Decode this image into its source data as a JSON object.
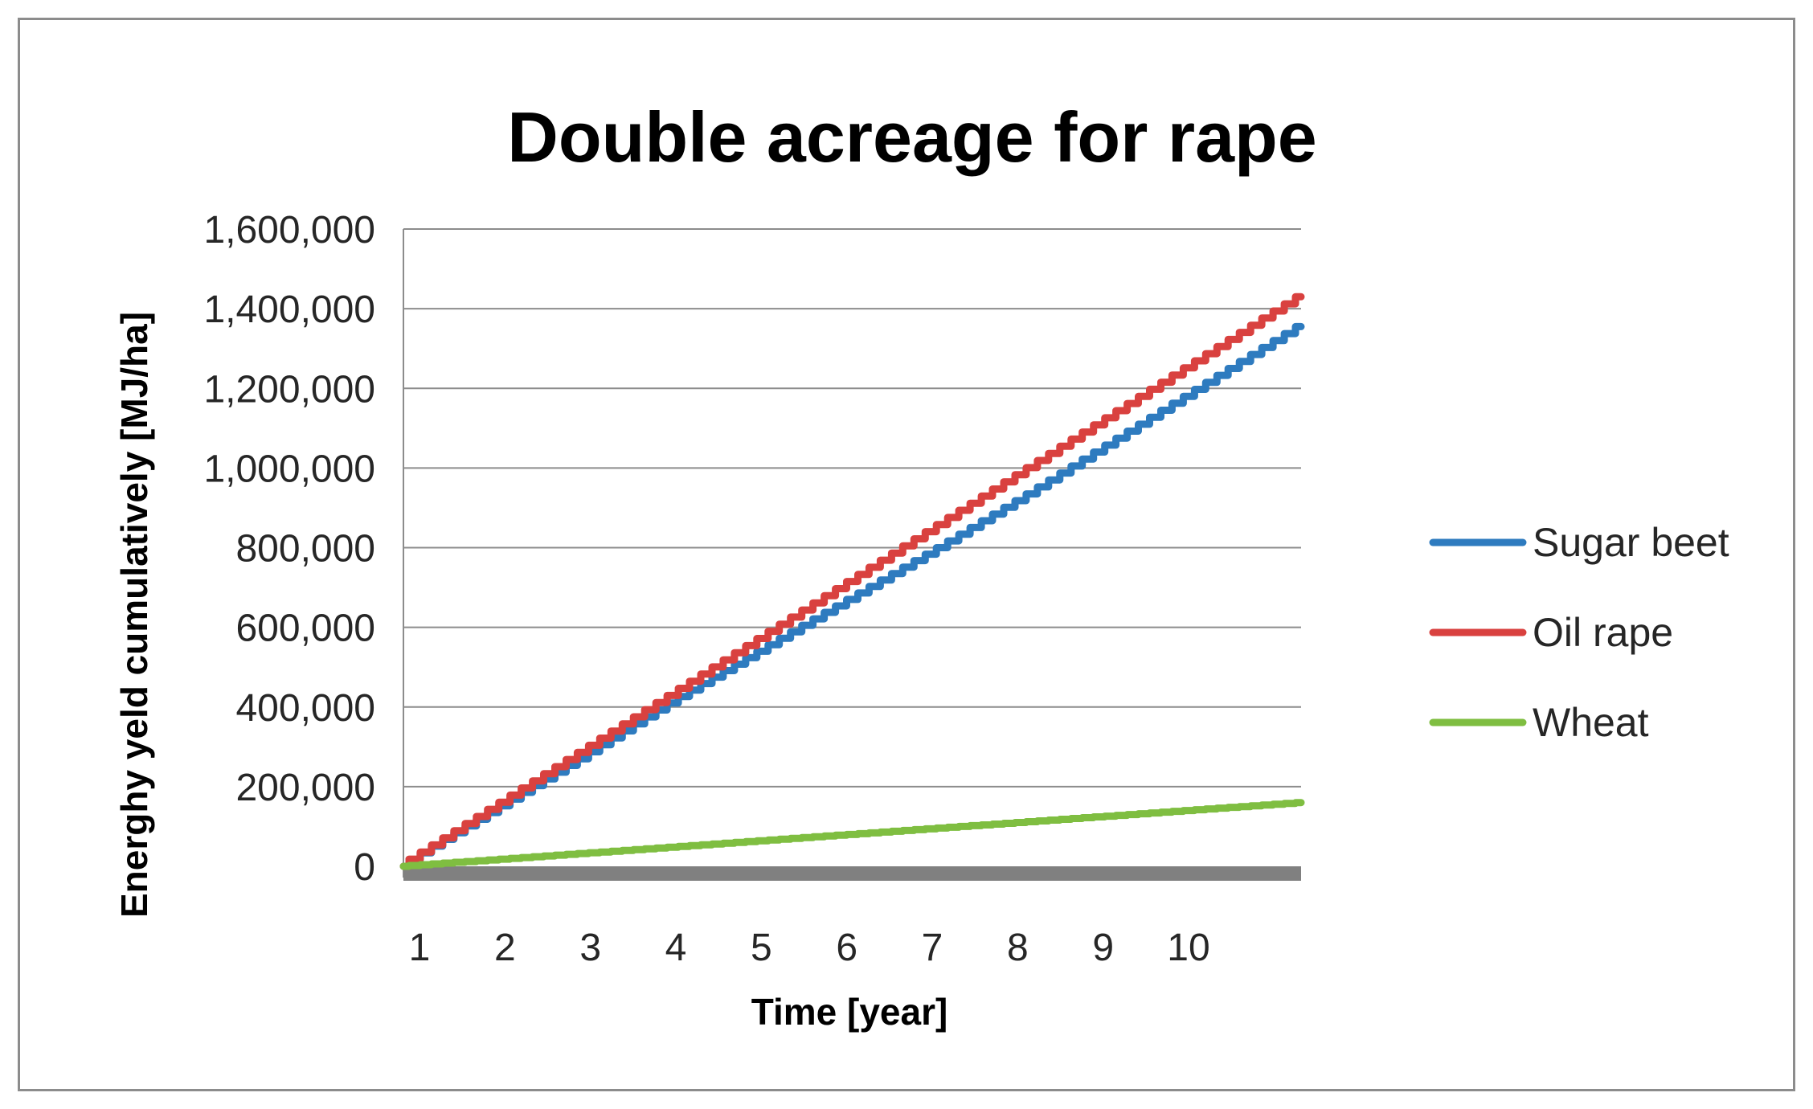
{
  "chart_data": {
    "type": "line",
    "title": "Double acreage for rape",
    "xlabel": "Time [year]",
    "ylabel": "Energhy yeld cumulatively [MJ/ha]",
    "x_tick_labels": [
      "1",
      "2",
      "3",
      "4",
      "5",
      "6",
      "7",
      "8",
      "9",
      "10"
    ],
    "y_tick_labels": [
      "0",
      "200,000",
      "400,000",
      "600,000",
      "800,000",
      "1,000,000",
      "1,200,000",
      "1,400,000",
      "1,600,000"
    ],
    "ylim": [
      0,
      1600000
    ],
    "xlim": [
      1,
      11
    ],
    "grid": true,
    "legend_position": "right",
    "series": [
      {
        "name": "Sugar beet",
        "color": "#2e7bbf",
        "x": [
          1,
          2,
          3,
          4,
          5,
          6,
          7,
          8,
          9,
          10,
          11
        ],
        "values": [
          0,
          135000,
          270000,
          410000,
          540000,
          670000,
          800000,
          935000,
          1075000,
          1215000,
          1355000
        ]
      },
      {
        "name": "Oil rape",
        "color": "#d9413f",
        "x": [
          1,
          2,
          3,
          4,
          5,
          6,
          7,
          8,
          9,
          10,
          11
        ],
        "values": [
          0,
          143000,
          286000,
          429000,
          572000,
          715000,
          858000,
          1001000,
          1144000,
          1287000,
          1430000
        ]
      },
      {
        "name": "Wheat",
        "color": "#7fbe41",
        "x": [
          1,
          2,
          3,
          4,
          5,
          6,
          7,
          8,
          9,
          10,
          11
        ],
        "values": [
          0,
          16000,
          32000,
          48000,
          64000,
          80000,
          96000,
          112000,
          128000,
          144000,
          160000
        ]
      }
    ]
  }
}
